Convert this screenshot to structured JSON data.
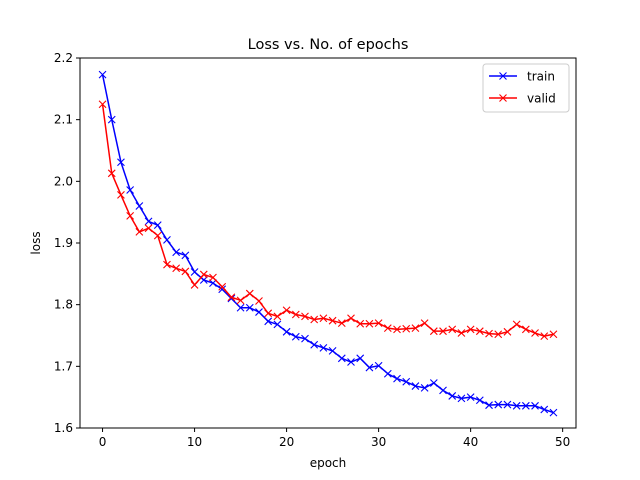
{
  "chart_data": {
    "type": "line",
    "title": "Loss vs. No. of epochs",
    "xlabel": "epoch",
    "ylabel": "loss",
    "xlim": [
      -2.45,
      51.45
    ],
    "ylim": [
      1.6,
      2.2
    ],
    "xticks": [
      0,
      10,
      20,
      30,
      40,
      50
    ],
    "yticks": [
      1.6,
      1.7,
      1.8,
      1.9,
      2.0,
      2.1,
      2.2
    ],
    "ytick_labels": [
      "1.6",
      "1.7",
      "1.8",
      "1.9",
      "2.0",
      "2.1",
      "2.2"
    ],
    "grid": false,
    "legend_position": "top-right",
    "marker": "x",
    "x": [
      0,
      1,
      2,
      3,
      4,
      5,
      6,
      7,
      8,
      9,
      10,
      11,
      12,
      13,
      14,
      15,
      16,
      17,
      18,
      19,
      20,
      21,
      22,
      23,
      24,
      25,
      26,
      27,
      28,
      29,
      30,
      31,
      32,
      33,
      34,
      35,
      36,
      37,
      38,
      39,
      40,
      41,
      42,
      43,
      44,
      45,
      46,
      47,
      48,
      49
    ],
    "series": [
      {
        "name": "train",
        "color": "#0000ff",
        "values": [
          2.173,
          2.1,
          2.031,
          1.986,
          1.96,
          1.935,
          1.929,
          1.905,
          1.885,
          1.88,
          1.853,
          1.84,
          1.835,
          1.825,
          1.81,
          1.795,
          1.795,
          1.788,
          1.773,
          1.768,
          1.756,
          1.748,
          1.745,
          1.735,
          1.73,
          1.725,
          1.713,
          1.707,
          1.713,
          1.698,
          1.701,
          1.688,
          1.68,
          1.675,
          1.668,
          1.665,
          1.673,
          1.661,
          1.652,
          1.648,
          1.65,
          1.645,
          1.637,
          1.638,
          1.638,
          1.636,
          1.636,
          1.636,
          1.63,
          1.625
        ]
      },
      {
        "name": "valid",
        "color": "#ff0000",
        "values": [
          2.125,
          2.013,
          1.978,
          1.944,
          1.918,
          1.924,
          1.912,
          1.865,
          1.859,
          1.854,
          1.832,
          1.849,
          1.844,
          1.829,
          1.812,
          1.807,
          1.818,
          1.806,
          1.786,
          1.781,
          1.791,
          1.784,
          1.781,
          1.776,
          1.778,
          1.774,
          1.77,
          1.778,
          1.769,
          1.769,
          1.77,
          1.762,
          1.76,
          1.761,
          1.762,
          1.77,
          1.757,
          1.757,
          1.76,
          1.754,
          1.76,
          1.757,
          1.753,
          1.752,
          1.756,
          1.768,
          1.76,
          1.754,
          1.749,
          1.752
        ]
      }
    ]
  }
}
